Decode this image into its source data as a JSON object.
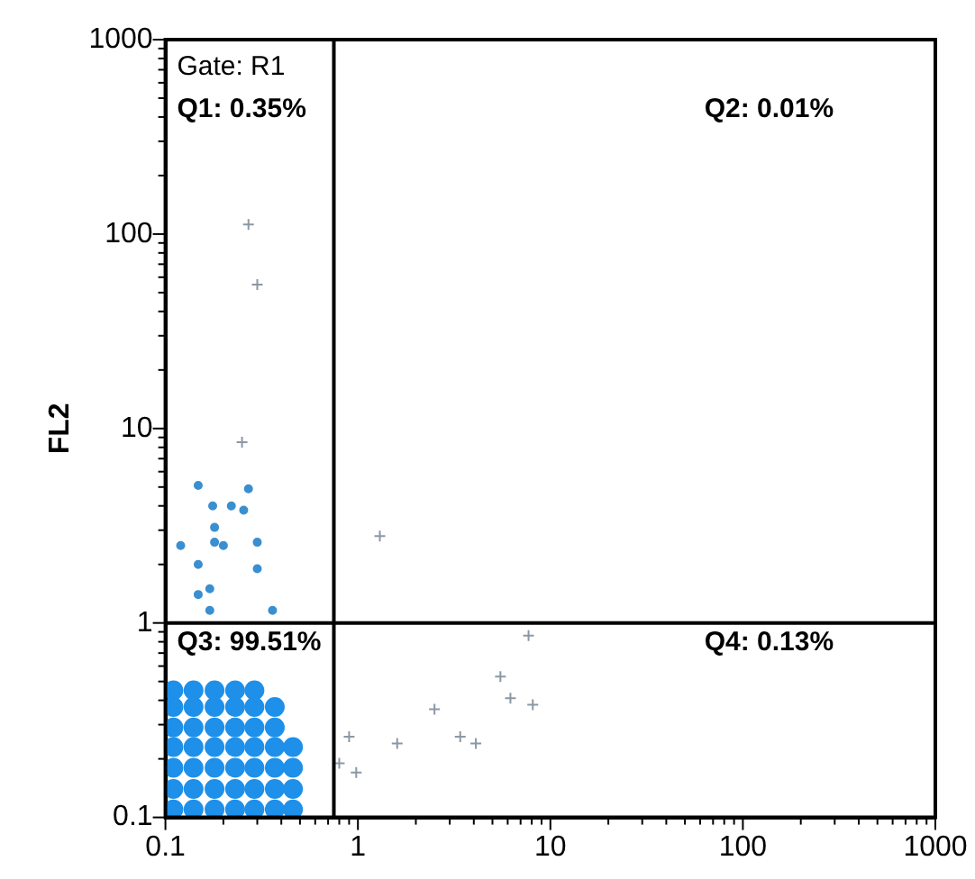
{
  "chart_data": {
    "type": "scatter",
    "ylabel": "FL2",
    "log": "xy",
    "grid": false,
    "legend": false,
    "xlim": [
      0.1,
      1000
    ],
    "ylim": [
      0.1,
      1000
    ],
    "xticks": [
      0.1,
      {
        "value": 0.2,
        "label": null
      },
      {
        "value": 0.3,
        "label": null
      },
      {
        "value": 0.4,
        "label": null
      },
      {
        "value": 0.5,
        "label": null
      },
      {
        "value": 0.6,
        "label": null
      },
      {
        "value": 0.7,
        "label": null
      },
      {
        "value": 0.8,
        "label": null
      },
      {
        "value": 0.9,
        "label": null
      },
      1,
      {
        "value": 2,
        "label": null
      },
      {
        "value": 3,
        "label": null
      },
      {
        "value": 4,
        "label": null
      },
      {
        "value": 5,
        "label": null
      },
      {
        "value": 6,
        "label": null
      },
      {
        "value": 7,
        "label": null
      },
      {
        "value": 8,
        "label": null
      },
      {
        "value": 9,
        "label": null
      },
      10,
      {
        "value": 20,
        "label": null
      },
      {
        "value": 30,
        "label": null
      },
      {
        "value": 40,
        "label": null
      },
      {
        "value": 50,
        "label": null
      },
      {
        "value": 60,
        "label": null
      },
      {
        "value": 70,
        "label": null
      },
      {
        "value": 80,
        "label": null
      },
      {
        "value": 90,
        "label": null
      },
      100,
      {
        "value": 200,
        "label": null
      },
      {
        "value": 300,
        "label": null
      },
      {
        "value": 400,
        "label": null
      },
      {
        "value": 500,
        "label": null
      },
      {
        "value": 600,
        "label": null
      },
      {
        "value": 700,
        "label": null
      },
      {
        "value": 800,
        "label": null
      },
      {
        "value": 900,
        "label": null
      },
      1000
    ],
    "yticks": [
      0.1,
      {
        "value": 0.2,
        "label": null
      },
      {
        "value": 0.3,
        "label": null
      },
      {
        "value": 0.4,
        "label": null
      },
      {
        "value": 0.5,
        "label": null
      },
      {
        "value": 0.6,
        "label": null
      },
      {
        "value": 0.7,
        "label": null
      },
      {
        "value": 0.8,
        "label": null
      },
      {
        "value": 0.9,
        "label": null
      },
      1,
      {
        "value": 2,
        "label": null
      },
      {
        "value": 3,
        "label": null
      },
      {
        "value": 4,
        "label": null
      },
      {
        "value": 5,
        "label": null
      },
      {
        "value": 6,
        "label": null
      },
      {
        "value": 7,
        "label": null
      },
      {
        "value": 8,
        "label": null
      },
      {
        "value": 9,
        "label": null
      },
      10,
      {
        "value": 20,
        "label": null
      },
      {
        "value": 30,
        "label": null
      },
      {
        "value": 40,
        "label": null
      },
      {
        "value": 50,
        "label": null
      },
      {
        "value": 60,
        "label": null
      },
      {
        "value": 70,
        "label": null
      },
      {
        "value": 80,
        "label": null
      },
      {
        "value": 90,
        "label": null
      },
      100,
      {
        "value": 200,
        "label": null
      },
      {
        "value": 300,
        "label": null
      },
      {
        "value": 400,
        "label": null
      },
      {
        "value": 500,
        "label": null
      },
      {
        "value": 600,
        "label": null
      },
      {
        "value": 700,
        "label": null
      },
      {
        "value": 800,
        "label": null
      },
      {
        "value": 900,
        "label": null
      },
      1000
    ],
    "ref_lines": [
      {
        "axis": "x",
        "value": 0.75,
        "color": "#000000"
      },
      {
        "axis": "y",
        "value": 1,
        "color": "#000000"
      }
    ],
    "annotations": [
      "Gate: R1",
      "Q1: 0.35%",
      "Q2: 0.01%",
      "Q3: 99.51%",
      "Q4: 0.13%"
    ],
    "series": [
      {
        "color": "#1e90ea",
        "marker": "circle",
        "x": [
          0.11,
          0.14,
          0.18,
          0.23,
          0.29,
          0.37,
          0.46,
          0.11,
          0.14,
          0.18,
          0.23,
          0.29,
          0.37,
          0.46,
          0.11,
          0.14,
          0.18,
          0.23,
          0.29,
          0.37,
          0.46,
          0.11,
          0.14,
          0.18,
          0.23,
          0.29,
          0.37,
          0.46,
          0.11,
          0.14,
          0.18,
          0.23,
          0.29,
          0.37,
          0.11,
          0.14,
          0.18,
          0.23,
          0.29,
          0.37,
          0.11,
          0.14,
          0.18,
          0.23,
          0.29
        ],
        "values": [
          0.11,
          0.11,
          0.11,
          0.11,
          0.11,
          0.11,
          0.11,
          0.14,
          0.14,
          0.14,
          0.14,
          0.14,
          0.14,
          0.14,
          0.18,
          0.18,
          0.18,
          0.18,
          0.18,
          0.18,
          0.18,
          0.23,
          0.23,
          0.23,
          0.23,
          0.23,
          0.23,
          0.23,
          0.29,
          0.29,
          0.29,
          0.29,
          0.29,
          0.29,
          0.37,
          0.37,
          0.37,
          0.37,
          0.37,
          0.37,
          0.45,
          0.45,
          0.45,
          0.45,
          0.45
        ]
      },
      {
        "color": "#3a8fd0",
        "marker": "circle",
        "x": [
          0.148,
          0.176,
          0.22,
          0.255,
          0.27,
          0.18,
          0.12,
          0.148,
          0.18,
          0.2,
          0.3,
          0.3,
          0.17,
          0.148,
          0.17,
          0.36
        ],
        "values": [
          5.1,
          4.0,
          4.0,
          3.8,
          4.9,
          3.1,
          2.5,
          2.0,
          2.6,
          2.5,
          2.6,
          1.9,
          1.5,
          1.4,
          1.16,
          1.16
        ]
      },
      {
        "color": "#8a98a6",
        "marker": "cross",
        "x": [
          0.27,
          0.3,
          0.25,
          1.3,
          7.7,
          5.5,
          6.2,
          8.1,
          2.5,
          3.4,
          4.1,
          1.6,
          0.9,
          0.8,
          0.98
        ],
        "values": [
          112,
          55,
          8.5,
          2.8,
          0.86,
          0.53,
          0.41,
          0.38,
          0.36,
          0.26,
          0.24,
          0.24,
          0.26,
          0.19,
          0.17
        ]
      }
    ]
  }
}
